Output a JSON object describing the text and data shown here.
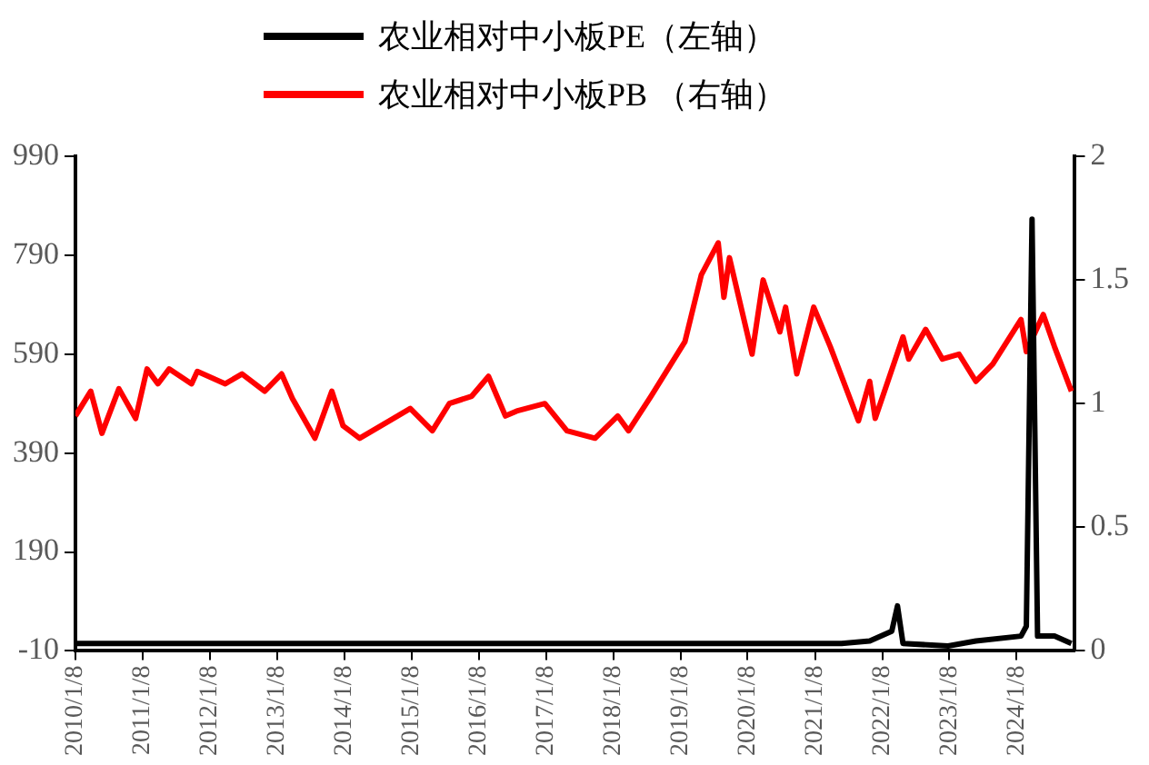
{
  "chart_data": {
    "type": "line",
    "legend": "top",
    "grid": false,
    "marker": "none",
    "line_style": "solid",
    "xlim": [
      "2010-01-08",
      "2024-11-15"
    ],
    "xticks": [
      {
        "value": "2010-01-08",
        "label": "2010/1/8"
      },
      {
        "value": "2011-01-08",
        "label": "2011/1/8"
      },
      {
        "value": "2012-01-08",
        "label": "2012/1/8"
      },
      {
        "value": "2013-01-08",
        "label": "2013/1/8"
      },
      {
        "value": "2014-01-08",
        "label": "2014/1/8"
      },
      {
        "value": "2015-01-08",
        "label": "2015/1/8"
      },
      {
        "value": "2016-01-08",
        "label": "2016/1/8"
      },
      {
        "value": "2017-01-08",
        "label": "2017/1/8"
      },
      {
        "value": "2018-01-08",
        "label": "2018/1/8"
      },
      {
        "value": "2019-01-08",
        "label": "2019/1/8"
      },
      {
        "value": "2020-01-08",
        "label": "2020/1/8"
      },
      {
        "value": "2021-01-08",
        "label": "2021/1/8"
      },
      {
        "value": "2022-01-08",
        "label": "2022/1/8"
      },
      {
        "value": "2023-01-08",
        "label": "2023/1/8"
      },
      {
        "value": "2024-01-08",
        "label": "2024/1/8"
      }
    ],
    "ylim": [
      -10,
      990
    ],
    "yticks": [
      -10,
      190,
      390,
      590,
      790,
      990
    ],
    "y2lim": [
      0,
      2
    ],
    "y2ticks": [
      0,
      0.5,
      1,
      1.5,
      2
    ],
    "series": [
      {
        "name": "农业相对中小板PE（左轴）",
        "color": "#000000",
        "x": [
          "2010-01-08",
          "2015-01",
          "2021-06",
          "2021-11",
          "2022-03",
          "2022-04",
          "2022-05",
          "2023-01",
          "2023-06",
          "2024-02",
          "2024-03",
          "2024-04",
          "2024-05",
          "2024-08",
          "2024-11"
        ],
        "values": [
          5,
          5,
          5,
          10,
          30,
          81,
          5,
          0,
          10,
          20,
          40,
          863,
          20,
          20,
          5
        ]
      },
      {
        "name": "农业相对中小板PB （右轴）",
        "color": "#ff0000",
        "axis": "y2",
        "x": [
          "2010-01-08",
          "2010-04",
          "2010-06",
          "2010-09",
          "2010-12",
          "2011-02",
          "2011-04",
          "2011-06",
          "2011-10",
          "2011-11",
          "2012-04",
          "2012-07",
          "2012-11",
          "2013-02",
          "2013-04",
          "2013-08",
          "2013-11",
          "2014-01",
          "2014-04",
          "2014-10",
          "2015-01",
          "2015-05",
          "2015-08",
          "2015-12",
          "2016-03",
          "2016-06",
          "2016-08",
          "2017-01",
          "2017-05",
          "2017-10",
          "2018-02",
          "2018-04",
          "2018-08",
          "2019-02",
          "2019-05",
          "2019-08",
          "2019-09",
          "2019-10",
          "2020-02",
          "2020-04",
          "2020-07",
          "2020-08",
          "2020-10",
          "2021-01",
          "2021-04",
          "2021-09",
          "2021-11",
          "2021-12",
          "2022-05",
          "2022-06",
          "2022-09",
          "2022-12",
          "2023-03",
          "2023-06",
          "2023-09",
          "2024-02",
          "2024-03",
          "2024-06",
          "2024-08",
          "2024-11"
        ],
        "values": [
          0.95,
          1.05,
          0.88,
          1.06,
          0.94,
          1.14,
          1.08,
          1.14,
          1.08,
          1.13,
          1.08,
          1.12,
          1.05,
          1.12,
          1.02,
          0.86,
          1.05,
          0.91,
          0.86,
          0.94,
          0.98,
          0.89,
          1.0,
          1.03,
          1.11,
          0.95,
          0.97,
          1.0,
          0.89,
          0.86,
          0.95,
          0.89,
          1.03,
          1.25,
          1.52,
          1.65,
          1.43,
          1.59,
          1.2,
          1.5,
          1.29,
          1.39,
          1.12,
          1.39,
          1.23,
          0.93,
          1.09,
          0.94,
          1.27,
          1.18,
          1.3,
          1.18,
          1.2,
          1.09,
          1.16,
          1.34,
          1.21,
          1.36,
          1.23,
          1.05
        ]
      }
    ]
  }
}
